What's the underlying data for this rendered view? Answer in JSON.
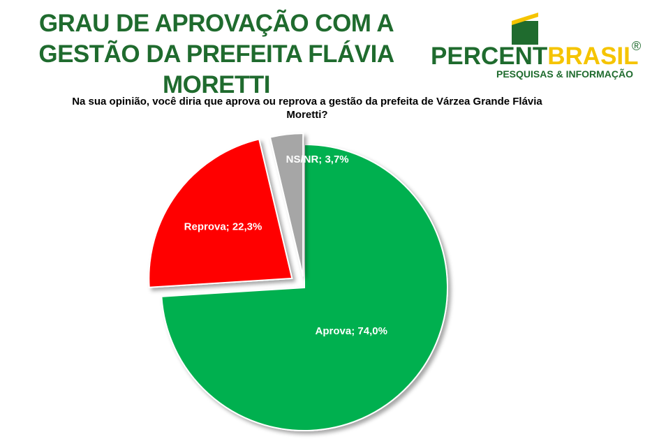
{
  "chart_data": {
    "type": "pie",
    "title": "GRAU DE APROVAÇÃO COM A GESTÃO DA PREFEITA FLÁVIA MORETTI",
    "subtitle": "Na sua opinião, você diria que aprova ou reprova a gestão da prefeita de Várzea Grande Flávia Moretti?",
    "values": [
      74.0,
      22.3,
      3.7
    ],
    "value_labels": [
      "Aprova; 74,0%",
      "Reprova; 22,3%",
      "NS/NR; 3,7%"
    ],
    "colors": [
      "#00b050",
      "#ff0000",
      "#a6a6a6"
    ]
  },
  "logo": {
    "name_first": "PERCENT",
    "name_second": "BRASIL",
    "mark": "®",
    "tagline": "PESQUISAS & INFORMAÇÃO"
  }
}
